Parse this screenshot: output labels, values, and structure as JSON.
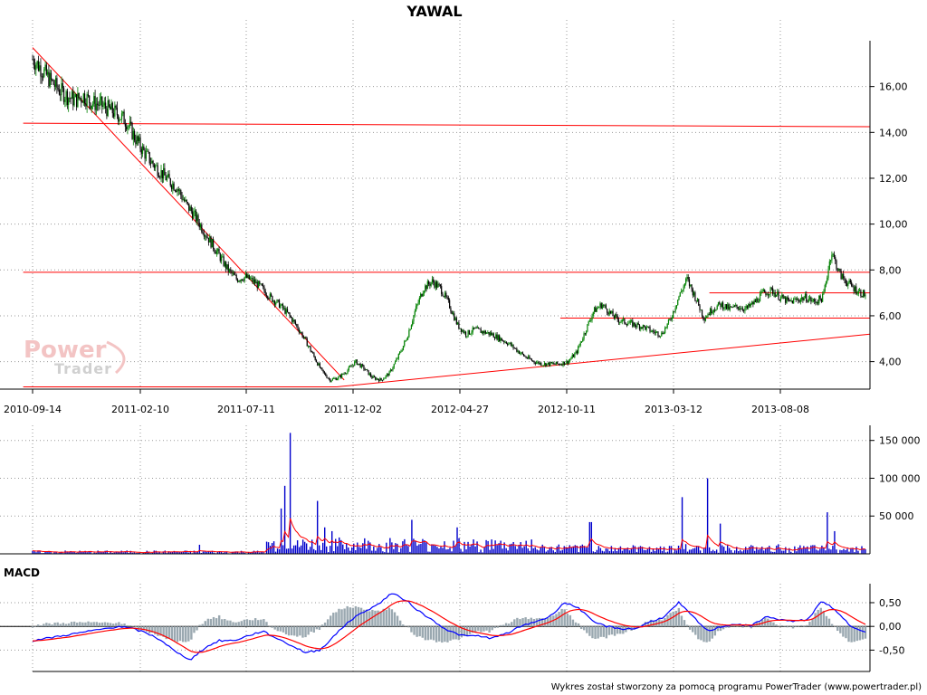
{
  "chart_data": [
    {
      "type": "candlestick",
      "title": "YAWAL",
      "x_ticks": [
        "2010-09-14",
        "2011-02-10",
        "2011-07-11",
        "2011-12-02",
        "2012-04-27",
        "2012-10-11",
        "2013-03-12",
        "2013-08-08"
      ],
      "y_ticks": [
        "4,00",
        "6,00",
        "8,00",
        "10,00",
        "12,00",
        "14,00",
        "16,00"
      ],
      "ylim": [
        2.8,
        18.0
      ],
      "grid": true,
      "price_close": [
        17.2,
        16.8,
        16.3,
        15.9,
        15.6,
        15.4,
        15.6,
        15.3,
        15.2,
        15.0,
        14.8,
        14.5,
        13.8,
        13.2,
        12.7,
        12.3,
        11.9,
        11.6,
        10.9,
        10.4,
        9.8,
        9.2,
        8.6,
        8.0,
        7.6,
        7.7,
        7.5,
        7.2,
        6.8,
        6.5,
        6.1,
        5.6,
        5.0,
        4.3,
        3.6,
        3.2,
        3.3,
        3.6,
        4.0,
        3.7,
        3.3,
        3.2,
        3.5,
        4.2,
        5.0,
        6.2,
        7.2,
        7.5,
        7.2,
        6.5,
        5.6,
        5.2,
        5.4,
        5.3,
        5.2,
        5.0,
        4.8,
        4.5,
        4.2,
        4.0,
        3.9,
        3.9,
        3.9,
        4.0,
        4.4,
        5.3,
        6.2,
        6.5,
        6.1,
        5.8,
        5.7,
        5.6,
        5.5,
        5.3,
        5.2,
        5.8,
        6.8,
        7.6,
        6.8,
        5.9,
        6.3,
        6.5,
        6.3,
        6.4,
        6.3,
        6.6,
        7.0,
        7.1,
        6.8,
        6.6,
        6.7,
        6.8,
        6.6,
        6.8,
        8.8,
        7.8,
        7.4,
        7.1,
        6.9
      ],
      "trend_lines": [
        {
          "from": [
            "2010-09-14",
            17.7
          ],
          "to": [
            "2011-11-20",
            3.2
          ]
        },
        {
          "from": [
            "2010-09-01",
            14.4
          ],
          "to": [
            "2013-12-31",
            14.25
          ]
        },
        {
          "from": [
            "2010-09-01",
            7.9
          ],
          "to": [
            "2013-12-31",
            7.9
          ]
        },
        {
          "from": [
            "2010-09-01",
            2.9
          ],
          "to": [
            "2011-11-10",
            2.9
          ]
        },
        {
          "from": [
            "2011-11-10",
            2.9
          ],
          "to": [
            "2013-12-31",
            5.2
          ]
        },
        {
          "from": [
            "2012-10-01",
            5.9
          ],
          "to": [
            "2013-12-31",
            5.9
          ]
        },
        {
          "from": [
            "2013-05-01",
            7.0
          ],
          "to": [
            "2013-12-31",
            7.0
          ]
        }
      ]
    },
    {
      "type": "bar",
      "series_desc": "volume",
      "y_ticks": [
        "50 000",
        "100 000",
        "150 000"
      ],
      "ylim": [
        0,
        170000
      ],
      "spikes": [
        {
          "pos": 0.31,
          "value": 160000
        },
        {
          "pos": 0.302,
          "value": 90000
        },
        {
          "pos": 0.298,
          "value": 60000
        },
        {
          "pos": 0.343,
          "value": 70000
        },
        {
          "pos": 0.35,
          "value": 35000
        },
        {
          "pos": 0.36,
          "value": 30000
        },
        {
          "pos": 0.455,
          "value": 45000
        },
        {
          "pos": 0.51,
          "value": 35000
        },
        {
          "pos": 0.67,
          "value": 42000
        },
        {
          "pos": 0.78,
          "value": 75000
        },
        {
          "pos": 0.81,
          "value": 100000
        },
        {
          "pos": 0.826,
          "value": 40000
        },
        {
          "pos": 0.955,
          "value": 55000
        },
        {
          "pos": 0.962,
          "value": 30000
        },
        {
          "pos": 0.2,
          "value": 12000
        }
      ]
    },
    {
      "type": "line",
      "title": "MACD",
      "y_ticks": [
        "0,50",
        "0,00",
        "-0,50"
      ],
      "ylim": [
        -0.95,
        0.9
      ],
      "macd": [
        -0.3,
        -0.25,
        -0.2,
        -0.15,
        -0.1,
        -0.05,
        -0.0,
        -0.05,
        -0.15,
        -0.3,
        -0.55,
        -0.7,
        -0.45,
        -0.3,
        -0.3,
        -0.2,
        -0.1,
        -0.25,
        -0.4,
        -0.55,
        -0.5,
        -0.2,
        0.1,
        0.3,
        0.45,
        0.7,
        0.55,
        0.3,
        0.1,
        -0.1,
        -0.2,
        -0.2,
        -0.25,
        -0.15,
        0.0,
        0.1,
        0.2,
        0.5,
        0.4,
        0.1,
        0.0,
        -0.05,
        -0.05,
        0.1,
        0.2,
        0.5,
        0.2,
        -0.1,
        0.0,
        0.05,
        0.0,
        0.2,
        0.15,
        0.1,
        0.15,
        0.55,
        0.3,
        0.0,
        -0.1
      ]
    }
  ],
  "logo": {
    "word1": "Power",
    "word2": "Trader"
  },
  "footer": "Wykres został stworzony za pomocą programu PowerTrader (www.powertrader.pl)",
  "colors": {
    "candle_up": "#008000",
    "candle_down": "#000000",
    "trend": "#ff0000",
    "volume": "#0000cc",
    "volume_ma": "#ff0000",
    "macd": "#0000ff",
    "signal": "#ff0000",
    "histogram": "#9aa8b0"
  }
}
